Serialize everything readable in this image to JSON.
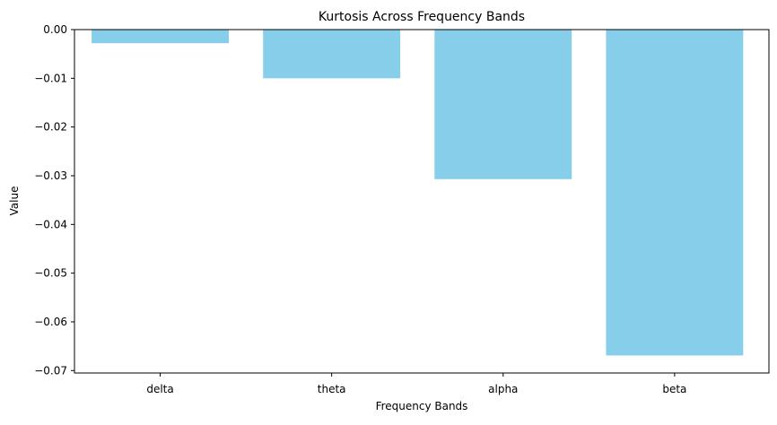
{
  "chart_data": {
    "type": "bar",
    "title": "Kurtosis Across Frequency Bands",
    "xlabel": "Frequency Bands",
    "ylabel": "Value",
    "categories": [
      "delta",
      "theta",
      "alpha",
      "beta"
    ],
    "values": [
      -0.0028,
      -0.01,
      -0.0307,
      -0.0669
    ],
    "ylim": [
      -0.0705,
      0.0
    ],
    "yticks": [
      0.0,
      -0.01,
      -0.02,
      -0.03,
      -0.04,
      -0.05,
      -0.06,
      -0.07
    ],
    "ytick_labels": [
      "0.00",
      "−0.01",
      "−0.02",
      "−0.03",
      "−0.04",
      "−0.05",
      "−0.06",
      "−0.07"
    ],
    "bar_color": "#87ceeb",
    "grid": false,
    "legend": "none"
  }
}
